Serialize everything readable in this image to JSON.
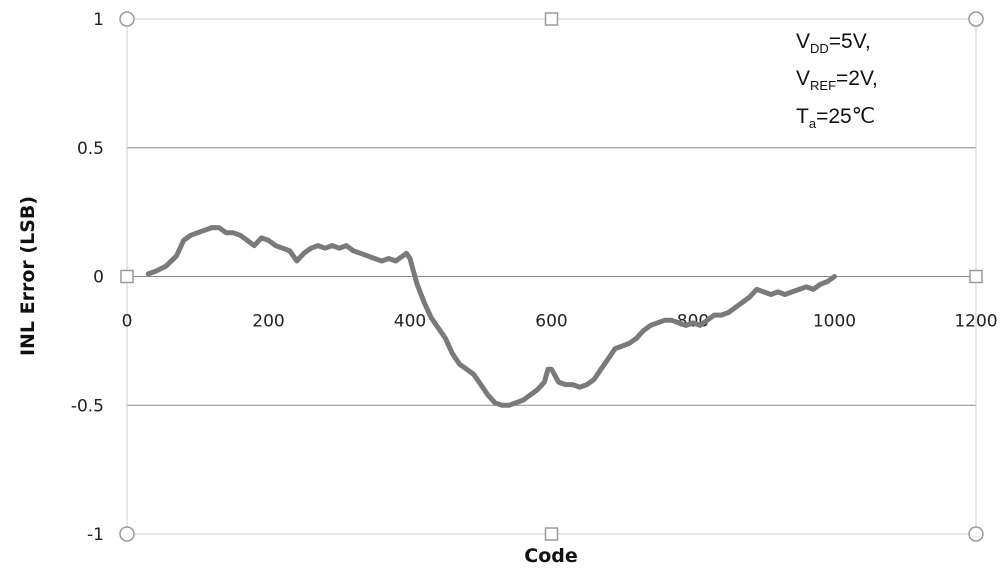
{
  "chart_data": {
    "type": "line",
    "xlabel": "Code",
    "ylabel": "INL Error (LSB)",
    "xlim": [
      0,
      1200
    ],
    "ylim": [
      -1,
      1
    ],
    "x_ticks": [
      "0",
      "200",
      "400",
      "600",
      "800",
      "1000",
      "1200"
    ],
    "y_ticks": [
      "1",
      "0.5",
      "0",
      "-0.5",
      "-1"
    ],
    "y_tick_values": [
      1,
      0.5,
      0,
      -0.5,
      -1
    ],
    "x_tick_values": [
      0,
      200,
      400,
      600,
      800,
      1000,
      1200
    ],
    "grid": "horizontal",
    "legend": "none",
    "series_color": "#7a7a7a",
    "annotation": {
      "line1": {
        "main": "V",
        "sub": "DD",
        "rest": "=5V,"
      },
      "line2": {
        "main": "V",
        "sub": "REF",
        "rest": "=2V,"
      },
      "line3": {
        "main": "T",
        "sub": "a",
        "rest": "=25℃"
      }
    },
    "series": [
      {
        "x": [
          30,
          40,
          55,
          70,
          80,
          90,
          100,
          110,
          120,
          130,
          140,
          150,
          160,
          170,
          180,
          190,
          200,
          210,
          220,
          230,
          240,
          250,
          260,
          270,
          280,
          290,
          300,
          310,
          320,
          330,
          340,
          350,
          360,
          370,
          380,
          390,
          395,
          400,
          405,
          410,
          420,
          430,
          440,
          450,
          460,
          470,
          480,
          490,
          500,
          510,
          520,
          530,
          540,
          550,
          560,
          570,
          580,
          590,
          595,
          600,
          610,
          620,
          630,
          640,
          650,
          660,
          670,
          680,
          690,
          700,
          710,
          720,
          730,
          740,
          750,
          760,
          770,
          780,
          790,
          800,
          810,
          820,
          830,
          840,
          850,
          860,
          870,
          880,
          890,
          900,
          910,
          920,
          930,
          940,
          950,
          960,
          970,
          980,
          990,
          1000
        ],
        "y": [
          0.01,
          0.02,
          0.04,
          0.08,
          0.14,
          0.16,
          0.17,
          0.18,
          0.19,
          0.19,
          0.17,
          0.17,
          0.16,
          0.14,
          0.12,
          0.15,
          0.14,
          0.12,
          0.11,
          0.1,
          0.06,
          0.09,
          0.11,
          0.12,
          0.11,
          0.12,
          0.11,
          0.12,
          0.1,
          0.09,
          0.08,
          0.07,
          0.06,
          0.07,
          0.06,
          0.08,
          0.09,
          0.07,
          0.02,
          -0.03,
          -0.1,
          -0.16,
          -0.2,
          -0.24,
          -0.3,
          -0.34,
          -0.36,
          -0.38,
          -0.42,
          -0.46,
          -0.49,
          -0.5,
          -0.5,
          -0.49,
          -0.48,
          -0.46,
          -0.44,
          -0.41,
          -0.36,
          -0.36,
          -0.41,
          -0.42,
          -0.42,
          -0.43,
          -0.42,
          -0.4,
          -0.36,
          -0.32,
          -0.28,
          -0.27,
          -0.26,
          -0.24,
          -0.21,
          -0.19,
          -0.18,
          -0.17,
          -0.17,
          -0.18,
          -0.19,
          -0.18,
          -0.19,
          -0.17,
          -0.15,
          -0.15,
          -0.14,
          -0.12,
          -0.1,
          -0.08,
          -0.05,
          -0.06,
          -0.07,
          -0.06,
          -0.07,
          -0.06,
          -0.05,
          -0.04,
          -0.05,
          -0.03,
          -0.02,
          0.0
        ]
      }
    ]
  }
}
